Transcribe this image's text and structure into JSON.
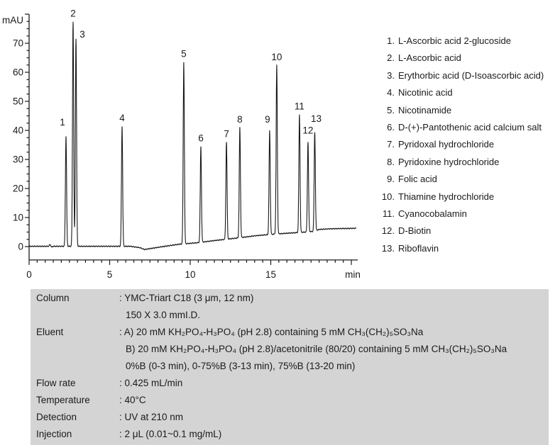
{
  "chart_data": {
    "type": "line",
    "title": "",
    "y_axis": {
      "label": "mAU",
      "min": -4.6,
      "max": 80,
      "major_step": 10,
      "minor_step": 2.5,
      "tick_labels": [
        "0",
        "10",
        "20",
        "30",
        "40",
        "50",
        "60",
        "70"
      ]
    },
    "x_axis": {
      "unit_label": "min",
      "min": 0,
      "max": 20.4,
      "major_step": 5,
      "minor_step": 0.5,
      "tick_labels": [
        "0",
        "5",
        "10",
        "15"
      ]
    },
    "grid": false,
    "peaks": [
      {
        "num": 1,
        "legend_label": "1.",
        "rt_min": 2.29,
        "apex_mau": 38.0,
        "compound": "L-Ascorbic acid 2-glucoside",
        "label_dx": -5,
        "label_dy": -8
      },
      {
        "num": 2,
        "legend_label": "2.",
        "rt_min": 2.73,
        "apex_mau": 77.5,
        "compound": "L-Ascorbic acid"
      },
      {
        "num": 3,
        "legend_label": "3.",
        "rt_min": 2.91,
        "apex_mau": 71.5,
        "compound": "Erythorbic acid (D-Isoascorbic acid)",
        "label_dx": 9,
        "label_dy": 5
      },
      {
        "num": 4,
        "legend_label": "4.",
        "rt_min": 5.77,
        "apex_mau": 41.5,
        "compound": "Nicotinic acid"
      },
      {
        "num": 5,
        "legend_label": "5.",
        "rt_min": 9.6,
        "apex_mau": 63.5,
        "compound": "Nicotinamide"
      },
      {
        "num": 6,
        "legend_label": "6.",
        "rt_min": 10.66,
        "apex_mau": 34.5,
        "compound": "D-(+)-Pantothenic acid calcium salt"
      },
      {
        "num": 7,
        "legend_label": "7.",
        "rt_min": 12.25,
        "apex_mau": 36.0,
        "compound": "Pyridoxal hydrochloride"
      },
      {
        "num": 8,
        "legend_label": "8.",
        "rt_min": 13.08,
        "apex_mau": 41.0,
        "compound": "Pyridoxine hydrochloride"
      },
      {
        "num": 9,
        "legend_label": "9.",
        "rt_min": 14.93,
        "apex_mau": 40.0,
        "compound": "Folic acid",
        "label_dx": -3,
        "label_dy": -4
      },
      {
        "num": 10,
        "legend_label": "10.",
        "rt_min": 15.37,
        "apex_mau": 62.5,
        "compound": "Thiamine hydrochloride"
      },
      {
        "num": 11,
        "legend_label": "11.",
        "rt_min": 16.78,
        "apex_mau": 45.5,
        "compound": "Cyanocobalamin"
      },
      {
        "num": 12,
        "legend_label": "12.",
        "rt_min": 17.31,
        "apex_mau": 36.0,
        "compound": "D-Biotin",
        "label_dy": -5
      },
      {
        "num": 13,
        "legend_label": "13.",
        "rt_min": 17.73,
        "apex_mau": 39.5,
        "compound": "Riboflavin",
        "label_dx": 2,
        "label_dy": -7
      }
    ],
    "baseline_points": [
      [
        0,
        0.1
      ],
      [
        1.2,
        0.1
      ],
      [
        1.3,
        0.7
      ],
      [
        1.4,
        -0.2
      ],
      [
        1.5,
        0.1
      ],
      [
        6.3,
        0.1
      ],
      [
        6.9,
        -0.4
      ],
      [
        7.15,
        -1.0
      ],
      [
        7.5,
        -0.7
      ],
      [
        8.3,
        0.0
      ],
      [
        9.3,
        0.8
      ],
      [
        10.4,
        1.3
      ],
      [
        11.4,
        2.0
      ],
      [
        12.2,
        2.5
      ],
      [
        13.0,
        3.0
      ],
      [
        14.0,
        3.7
      ],
      [
        15.0,
        4.2
      ],
      [
        16.0,
        4.6
      ],
      [
        16.9,
        4.9
      ],
      [
        17.6,
        5.2
      ],
      [
        18.0,
        5.9
      ],
      [
        18.6,
        6.1
      ],
      [
        19.3,
        6.2
      ],
      [
        20.3,
        6.3
      ]
    ],
    "trace_color": "#1a1a1a"
  },
  "conditions": {
    "rows": [
      {
        "label": "Column",
        "lines": [
          ": YMC-Triart C18 (3 μm, 12 nm)",
          "150 X 3.0 mmI.D."
        ]
      },
      {
        "label": "Eluent",
        "lines": [
          ": A) 20 mM KH₂PO₄-H₃PO₄ (pH 2.8) containing 5 mM CH₃(CH₂)₅SO₃Na",
          "B) 20 mM KH₂PO₄-H₃PO₄ (pH 2.8)/acetonitrile (80/20) containing 5 mM CH₃(CH₂)₅SO₃Na",
          "0%B (0-3 min), 0-75%B (3-13 min), 75%B (13-20 min)"
        ]
      },
      {
        "label": "Flow rate",
        "lines": [
          ": 0.425 mL/min"
        ]
      },
      {
        "label": "Temperature",
        "lines": [
          ": 40°C"
        ]
      },
      {
        "label": "Detection",
        "lines": [
          ": UV at 210 nm"
        ]
      },
      {
        "label": "Injection",
        "lines": [
          ": 2 μL (0.01~0.1 mg/mL)"
        ]
      }
    ],
    "panel_color": "#d4d4d4"
  }
}
